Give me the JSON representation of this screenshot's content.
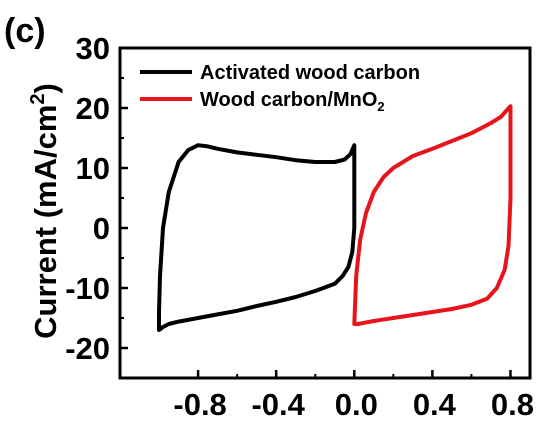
{
  "chart_data": {
    "type": "line",
    "panel_label": "(c)",
    "title": "",
    "xlabel": "",
    "ylabel": "Current (mA/cm",
    "ylabel_superscript": "2",
    "ylabel_suffix": ")",
    "xlim": [
      -1.2,
      0.9
    ],
    "ylim": [
      -25,
      30
    ],
    "x_ticks": [
      -0.8,
      -0.4,
      0.0,
      0.4,
      0.8
    ],
    "x_tick_labels": [
      "-0.8",
      "-0.4",
      "0.0",
      "0.4",
      "0.8"
    ],
    "y_ticks": [
      -20,
      -10,
      0,
      10,
      20,
      30
    ],
    "y_tick_labels": [
      "-20",
      "-10",
      "0",
      "10",
      "20",
      "30"
    ],
    "grid": false,
    "legend_position": "top-left",
    "series": [
      {
        "name": "Activated wood carbon",
        "color": "#000000",
        "x": [
          -1.0,
          -1.0,
          -0.995,
          -0.98,
          -0.95,
          -0.9,
          -0.85,
          -0.8,
          -0.75,
          -0.7,
          -0.6,
          -0.5,
          -0.4,
          -0.3,
          -0.2,
          -0.1,
          -0.05,
          -0.02,
          0.0,
          0.0,
          -0.01,
          -0.03,
          -0.06,
          -0.1,
          -0.2,
          -0.3,
          -0.4,
          -0.5,
          -0.6,
          -0.7,
          -0.8,
          -0.9,
          -0.95,
          -0.98,
          -1.0
        ],
        "y": [
          -17,
          -14,
          -8,
          0,
          6,
          11,
          13,
          13.8,
          13.6,
          13.2,
          12.6,
          12.2,
          11.8,
          11.3,
          11.0,
          11.0,
          11.4,
          12.3,
          13.8,
          0,
          -4,
          -6.5,
          -8,
          -9.3,
          -10.5,
          -11.5,
          -12.3,
          -13.0,
          -13.8,
          -14.4,
          -15.0,
          -15.6,
          -16.0,
          -16.5,
          -17
        ]
      },
      {
        "name": "Wood carbon/MnO",
        "name_subscript": "2",
        "color": "#e8141b",
        "x": [
          0.0,
          0.01,
          0.03,
          0.06,
          0.1,
          0.15,
          0.2,
          0.3,
          0.4,
          0.5,
          0.6,
          0.7,
          0.75,
          0.78,
          0.8,
          0.8,
          0.79,
          0.77,
          0.73,
          0.68,
          0.6,
          0.5,
          0.4,
          0.3,
          0.2,
          0.1,
          0.05,
          0.02,
          0.0
        ],
        "y": [
          -16,
          -8,
          -2,
          2.5,
          6,
          8.5,
          10,
          12,
          13.2,
          14.5,
          15.8,
          17.5,
          18.5,
          19.6,
          20.3,
          5,
          -3,
          -7,
          -10,
          -11.8,
          -12.8,
          -13.5,
          -14.0,
          -14.5,
          -15.0,
          -15.5,
          -15.8,
          -16.0,
          -16
        ]
      }
    ]
  }
}
